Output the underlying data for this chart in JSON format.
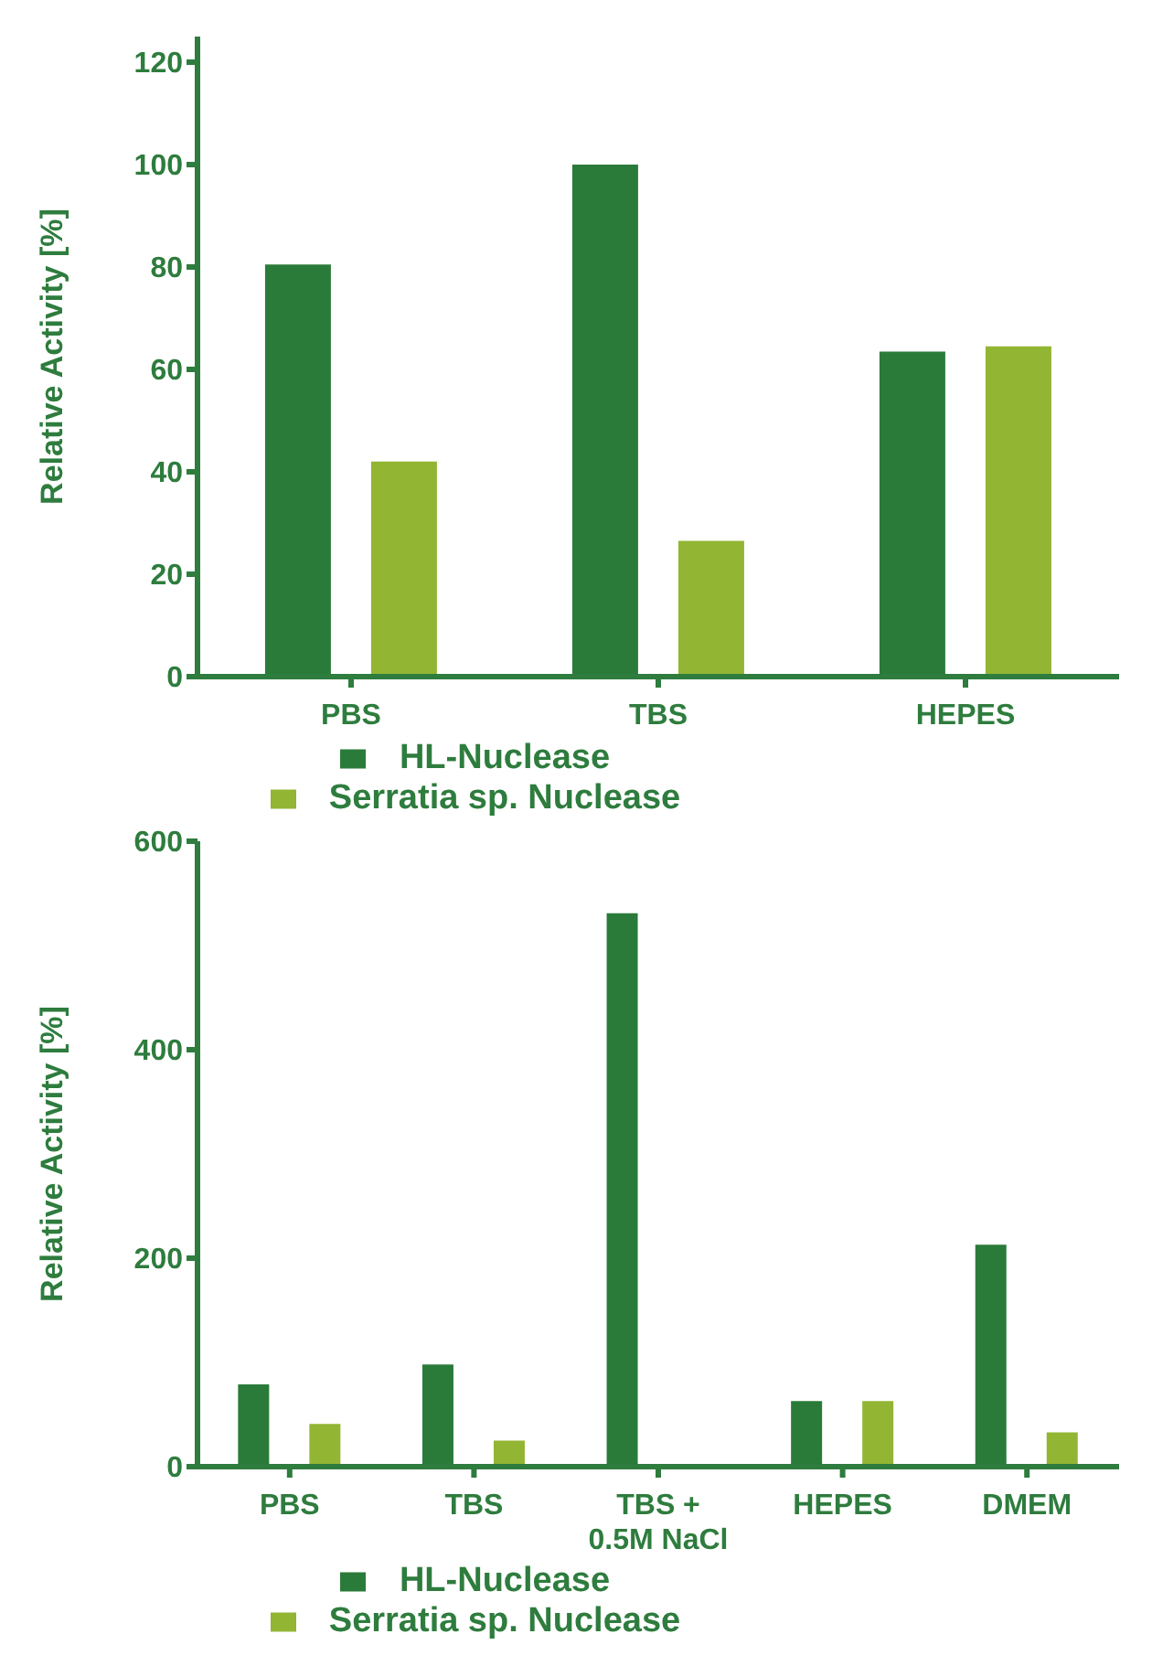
{
  "chart_data": [
    {
      "type": "bar",
      "ylabel": "Relative Activity [%]",
      "categories": [
        "PBS",
        "TBS",
        "HEPES"
      ],
      "series": [
        {
          "name": "HL-Nuclease",
          "color": "#2a7a3a",
          "values": [
            80.5,
            100,
            63.5
          ]
        },
        {
          "name": "Serratia sp. Nuclease",
          "color": "#93b534",
          "values": [
            42,
            26.5,
            64.5
          ]
        }
      ],
      "ylim": [
        0,
        125
      ],
      "yticks": [
        0,
        20,
        40,
        60,
        80,
        100,
        120
      ],
      "grid": false,
      "legend": "bottom"
    },
    {
      "type": "bar",
      "ylabel": "Relative Activity [%]",
      "categories": [
        "PBS",
        "TBS",
        "TBS +\n0.5M NaCl",
        "HEPES",
        "DMEM"
      ],
      "series": [
        {
          "name": "HL-Nuclease",
          "color": "#2a7a3a",
          "values": [
            79,
            98,
            531,
            63,
            213
          ]
        },
        {
          "name": "Serratia sp. Nuclease",
          "color": "#93b534",
          "values": [
            41,
            25,
            0,
            63,
            33
          ]
        }
      ],
      "ylim": [
        0,
        600
      ],
      "yticks": [
        0,
        200,
        400,
        600
      ],
      "grid": false,
      "legend": "bottom"
    }
  ]
}
